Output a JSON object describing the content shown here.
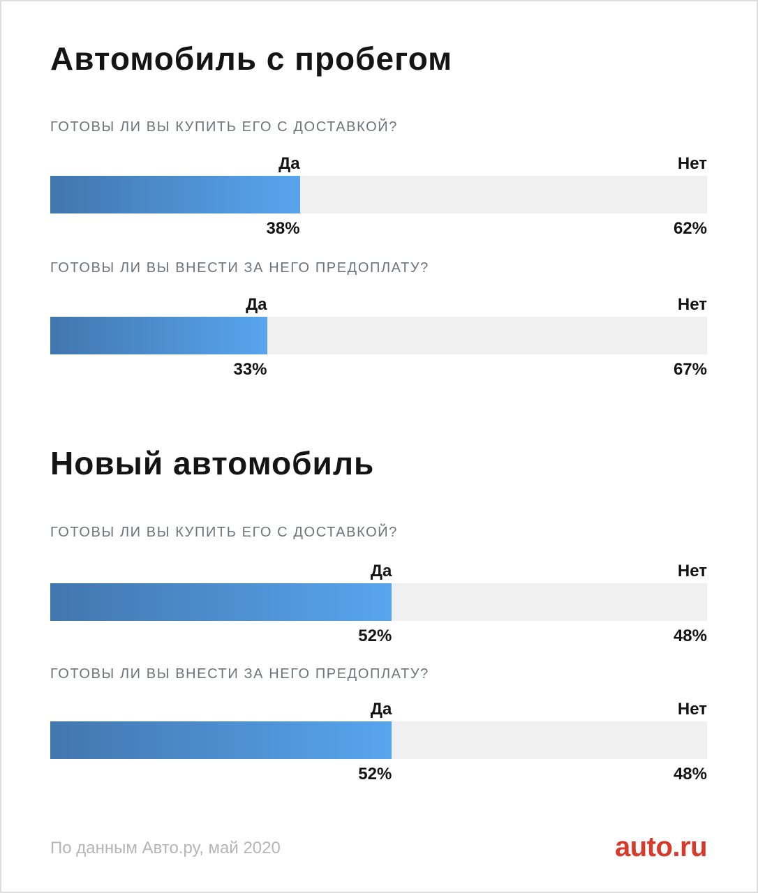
{
  "colors": {
    "page_border": "#dedede",
    "text_dark": "#141414",
    "question_gray": "#6e737a",
    "bar_track": "#f0f0f0",
    "bar_grad_start": "#4276ae",
    "bar_grad_end": "#58a5ee",
    "footer_gray": "#b5b5b5",
    "logo_red": "#d63a2a"
  },
  "sections": [
    {
      "title": "Автомобиль с пробегом",
      "questions": [
        {
          "label": "ГОТОВЫ ЛИ ВЫ КУПИТЬ ЕГО С ДОСТАВКОЙ?",
          "yes_label": "Да",
          "no_label": "Нет",
          "yes_value": "38%",
          "no_value": "62%",
          "yes_percent": 38
        },
        {
          "label": "ГОТОВЫ ЛИ ВЫ ВНЕСТИ ЗА НЕГО ПРЕДОПЛАТУ?",
          "yes_label": "Да",
          "no_label": "Нет",
          "yes_value": "33%",
          "no_value": "67%",
          "yes_percent": 33
        }
      ]
    },
    {
      "title": "Новый автомобиль",
      "questions": [
        {
          "label": "ГОТОВЫ ЛИ ВЫ КУПИТЬ ЕГО С ДОСТАВКОЙ?",
          "yes_label": "Да",
          "no_label": "Нет",
          "yes_value": "52%",
          "no_value": "48%",
          "yes_percent": 52
        },
        {
          "label": "ГОТОВЫ ЛИ ВЫ ВНЕСТИ ЗА НЕГО ПРЕДОПЛАТУ?",
          "yes_label": "Да",
          "no_label": "Нет",
          "yes_value": "52%",
          "no_value": "48%",
          "yes_percent": 52
        }
      ]
    }
  ],
  "footer": {
    "source": "По данным Авто.ру, май 2020",
    "logo": "auto.ru"
  },
  "chart_data": [
    {
      "type": "bar",
      "title": "Автомобиль с пробегом — Готовы ли вы купить его с доставкой?",
      "categories": [
        "Да",
        "Нет"
      ],
      "values": [
        38,
        62
      ],
      "unit": "%",
      "orientation": "horizontal-stacked",
      "xlim": [
        0,
        100
      ]
    },
    {
      "type": "bar",
      "title": "Автомобиль с пробегом — Готовы ли вы внести за него предоплату?",
      "categories": [
        "Да",
        "Нет"
      ],
      "values": [
        33,
        67
      ],
      "unit": "%",
      "orientation": "horizontal-stacked",
      "xlim": [
        0,
        100
      ]
    },
    {
      "type": "bar",
      "title": "Новый автомобиль — Готовы ли вы купить его с доставкой?",
      "categories": [
        "Да",
        "Нет"
      ],
      "values": [
        52,
        48
      ],
      "unit": "%",
      "orientation": "horizontal-stacked",
      "xlim": [
        0,
        100
      ]
    },
    {
      "type": "bar",
      "title": "Новый автомобиль — Готовы ли вы внести за него предоплату?",
      "categories": [
        "Да",
        "Нет"
      ],
      "values": [
        52,
        48
      ],
      "unit": "%",
      "orientation": "horizontal-stacked",
      "xlim": [
        0,
        100
      ]
    }
  ]
}
